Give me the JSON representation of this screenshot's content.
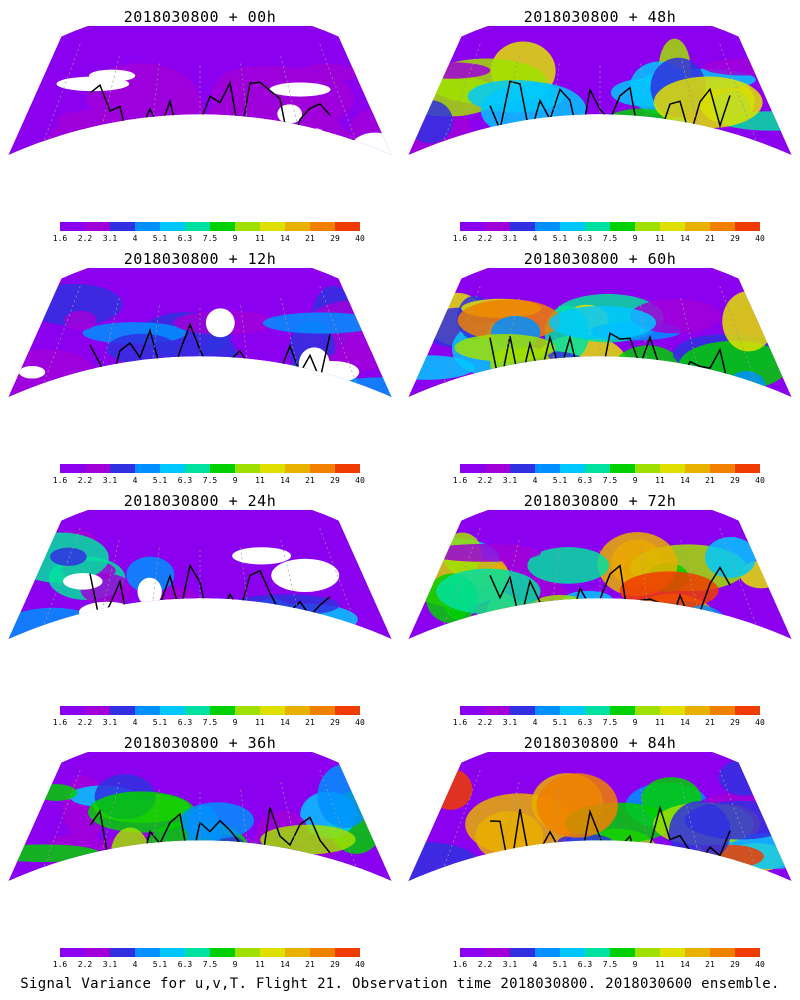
{
  "panels": [
    {
      "title": "2018030800 + 00h",
      "intensity": 0.1
    },
    {
      "title": "2018030800 + 48h",
      "intensity": 0.7
    },
    {
      "title": "2018030800 + 12h",
      "intensity": 0.25
    },
    {
      "title": "2018030800 + 60h",
      "intensity": 0.8
    },
    {
      "title": "2018030800 + 24h",
      "intensity": 0.4
    },
    {
      "title": "2018030800 + 72h",
      "intensity": 0.88
    },
    {
      "title": "2018030800 + 36h",
      "intensity": 0.55
    },
    {
      "title": "2018030800 + 84h",
      "intensity": 0.95
    }
  ],
  "colorbar": {
    "labels": [
      "1.6",
      "2.2",
      "3.1",
      "4",
      "5.1",
      "6.3",
      "7.5",
      "9",
      "11",
      "14",
      "21",
      "29",
      "40"
    ],
    "colors": [
      "#8c00f0",
      "#a000d8",
      "#3030e0",
      "#0090ff",
      "#00c8ff",
      "#00e0a0",
      "#00d000",
      "#a0e000",
      "#e0e000",
      "#e8b000",
      "#f08000",
      "#f03c00",
      "#ff0070"
    ]
  },
  "caption": "Signal Variance for u,v,T. Flight 21. Observation time 2018030800. 2018030600 ensemble."
}
